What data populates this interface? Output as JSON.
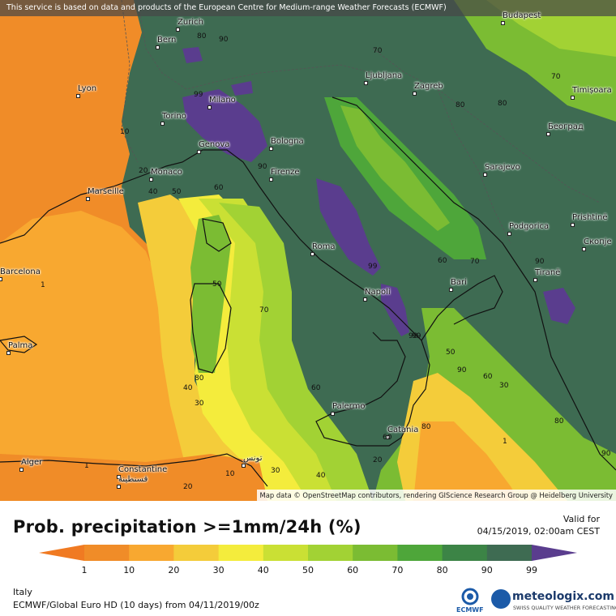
{
  "header": {
    "notice": "This service is based on data and products of the European Centre for Medium-range Weather Forecasts (ECMWF)"
  },
  "map": {
    "attribution": "Map data © OpenStreetMap contributors, rendering GIScience Research Group @ Heidelberg University",
    "cities": [
      {
        "name": "Zurich"
      },
      {
        "name": "Bern"
      },
      {
        "name": "Budapest"
      },
      {
        "name": "Lyon"
      },
      {
        "name": "Milano"
      },
      {
        "name": "Ljubljana"
      },
      {
        "name": "Zagreb"
      },
      {
        "name": "Timișoara"
      },
      {
        "name": "Torino"
      },
      {
        "name": "Bologna"
      },
      {
        "name": "Београд"
      },
      {
        "name": "Genova"
      },
      {
        "name": "Monaco"
      },
      {
        "name": "Firenze"
      },
      {
        "name": "Marseille"
      },
      {
        "name": "Sarajevo"
      },
      {
        "name": "Podgorica"
      },
      {
        "name": "Prishtinë"
      },
      {
        "name": "Roma"
      },
      {
        "name": "Скопје"
      },
      {
        "name": "Tiranë"
      },
      {
        "name": "Barcelona"
      },
      {
        "name": "Bari"
      },
      {
        "name": "Napoli"
      },
      {
        "name": "Palma"
      },
      {
        "name": "Palermo"
      },
      {
        "name": "Catania"
      },
      {
        "name": "Alger"
      },
      {
        "name": "Constantine"
      },
      {
        "name": "قسنطينة"
      },
      {
        "name": "تونس"
      }
    ],
    "contour_labels": [
      "80",
      "90",
      "99",
      "70",
      "10",
      "20",
      "40",
      "50",
      "60",
      "90",
      "99",
      "60",
      "1",
      "50",
      "70",
      "60",
      "40",
      "30",
      "90",
      "60",
      "70",
      "80",
      "80",
      "90",
      "30",
      "20",
      "40",
      "10",
      "20",
      "80",
      "60",
      "90",
      "99",
      "1",
      "30",
      "50",
      "70",
      "80",
      "1",
      "80",
      "90"
    ],
    "colors": {
      "p1": "#f08c28",
      "p10": "#f8a830",
      "p20": "#f4cc3a",
      "p30": "#f4ec3c",
      "p40": "#cae034",
      "p50": "#a2d234",
      "p60": "#7bbc33",
      "p70": "#4ea63a",
      "p80": "#3c8446",
      "p90": "#3e6b52",
      "p99": "#5a3d8e"
    }
  },
  "legend": {
    "title": "Prob. precipitation >=1mm/24h (%)",
    "ticks": [
      "1",
      "10",
      "20",
      "30",
      "40",
      "50",
      "60",
      "70",
      "80",
      "90",
      "99"
    ],
    "valid_label": "Valid for",
    "valid_time": "04/15/2019, 02:00am CEST"
  },
  "footer": {
    "region": "Italy",
    "model": "ECMWF/Global Euro HD (10 days) from 04/11/2019/00z",
    "ecmwf_logo": "ECMWF",
    "brand": "meteologix.com",
    "tagline": "SWISS QUALITY WEATHER FORECASTING"
  }
}
